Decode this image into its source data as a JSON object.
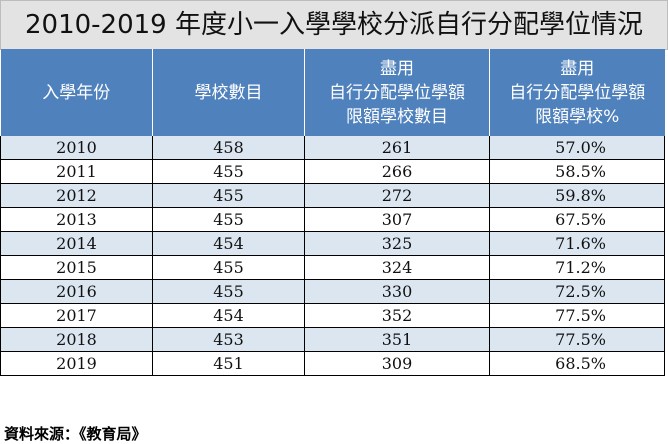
{
  "title": "2010-2019 年度小一入學學校分派自行分配學位情況",
  "headers": [
    {
      "lines": [
        "入學年份"
      ]
    },
    {
      "lines": [
        "學校數目"
      ]
    },
    {
      "lines": [
        "盡用",
        "自行分配學位學額",
        "限額學校數目"
      ]
    },
    {
      "lines": [
        "盡用",
        "自行分配學位學額",
        "限額學校%"
      ]
    }
  ],
  "rows": [
    {
      "year": "2010",
      "schools": "458",
      "full_schools": "261",
      "percent": "57.0%"
    },
    {
      "year": "2011",
      "schools": "455",
      "full_schools": "266",
      "percent": "58.5%"
    },
    {
      "year": "2012",
      "schools": "455",
      "full_schools": "272",
      "percent": "59.8%"
    },
    {
      "year": "2013",
      "schools": "455",
      "full_schools": "307",
      "percent": "67.5%"
    },
    {
      "year": "2014",
      "schools": "454",
      "full_schools": "325",
      "percent": "71.6%"
    },
    {
      "year": "2015",
      "schools": "455",
      "full_schools": "324",
      "percent": "71.2%"
    },
    {
      "year": "2016",
      "schools": "455",
      "full_schools": "330",
      "percent": "72.5%"
    },
    {
      "year": "2017",
      "schools": "454",
      "full_schools": "352",
      "percent": "77.5%"
    },
    {
      "year": "2018",
      "schools": "453",
      "full_schools": "351",
      "percent": "77.5%"
    },
    {
      "year": "2019",
      "schools": "451",
      "full_schools": "309",
      "percent": "68.5%"
    }
  ],
  "source": "資料來源：《教育局》",
  "colors": {
    "header_bg": "#4f81bd",
    "alt_row_bg": "#dce6f1",
    "title_bg": "#e3e3e3"
  }
}
